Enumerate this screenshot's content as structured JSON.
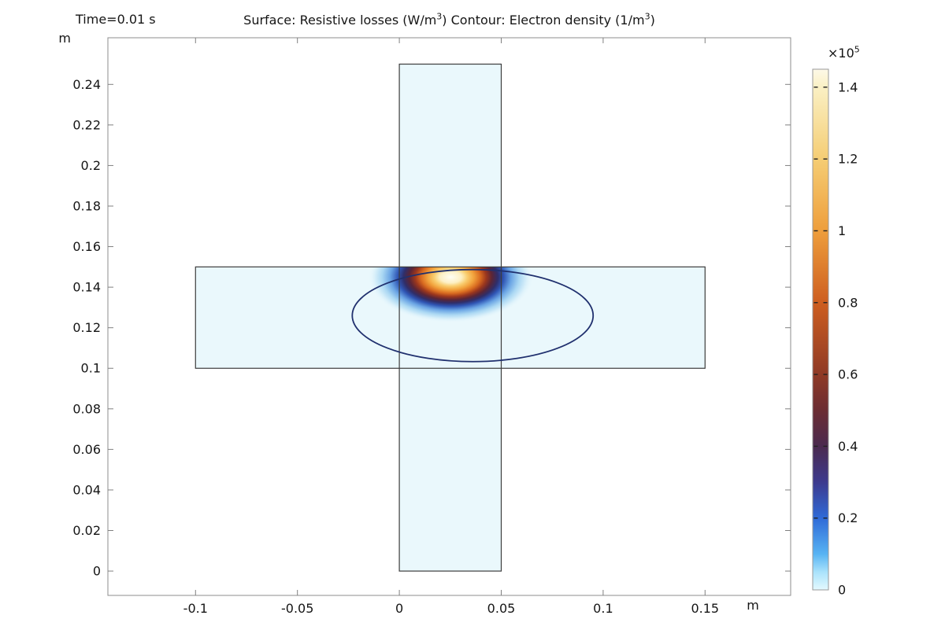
{
  "chart_data": {
    "type": "heatmap",
    "description": "2D simulation result plot: surface plot of resistive losses with an electron density contour over a cross-shaped geometry",
    "time_label": "Time=0.01 s",
    "title": "Surface: Resistive losses (W/m3)  Contour: Electron density (1/m3)",
    "title_parts": [
      {
        "text": "Surface: Resistive losses (W/m",
        "sup": false
      },
      {
        "text": "3",
        "sup": true
      },
      {
        "text": ")  Contour: Electron density (1/m",
        "sup": false
      },
      {
        "text": "3",
        "sup": true
      },
      {
        "text": ")",
        "sup": false
      }
    ],
    "x_unit": "m",
    "y_unit": "m",
    "x_axis": {
      "range": [
        -0.143,
        0.192
      ],
      "ticks": [
        -0.1,
        -0.05,
        0,
        0.05,
        0.1,
        0.15
      ],
      "tick_labels": [
        "-0.1",
        "-0.05",
        "0",
        "0.05",
        "0.1",
        "0.15"
      ]
    },
    "y_axis": {
      "range": [
        -0.012,
        0.263
      ],
      "ticks": [
        0,
        0.02,
        0.04,
        0.06,
        0.08,
        0.1,
        0.12,
        0.14,
        0.16,
        0.18,
        0.2,
        0.22,
        0.24
      ],
      "tick_labels": [
        "0",
        "0.02",
        "0.04",
        "0.06",
        "0.08",
        "0.1",
        "0.12",
        "0.14",
        "0.16",
        "0.18",
        "0.2",
        "0.22",
        "0.24"
      ]
    },
    "geometry": {
      "vertical_bar": {
        "x": [
          0,
          0.05
        ],
        "y": [
          0,
          0.25
        ]
      },
      "horizontal_bar": {
        "x": [
          -0.1,
          0.15
        ],
        "y": [
          0.1,
          0.15
        ]
      },
      "surface_background_value": 0
    },
    "surface_hotspot": {
      "center_x": 0.0252,
      "center_y": 0.145,
      "rx": 0.0406,
      "ry": 0.0225,
      "peak_value": 145000,
      "gradient_stops": [
        [
          0.0,
          "#fffef4",
          1
        ],
        [
          0.13,
          "#fdf0c4",
          1
        ],
        [
          0.2,
          "#f9ce70",
          1
        ],
        [
          0.28,
          "#f2a23c",
          1
        ],
        [
          0.36,
          "#d86a20",
          1
        ],
        [
          0.43,
          "#9c371d",
          1
        ],
        [
          0.5,
          "#5a2536",
          1
        ],
        [
          0.57,
          "#2f2e6a",
          1
        ],
        [
          0.64,
          "#2f55b4",
          1
        ],
        [
          0.73,
          "#6aa4e4",
          1
        ],
        [
          0.83,
          "#abd8f3",
          1
        ],
        [
          0.92,
          "#d9f0fa",
          1
        ],
        [
          1.0,
          "#eaf8fc",
          0
        ]
      ]
    },
    "contour_level": {
      "quantity": "Electron density",
      "cx": 0.036,
      "cy": 0.126,
      "rx": 0.0591,
      "ry": 0.0227
    },
    "colorbar": {
      "multiplier": "×105",
      "multiplier_parts": [
        {
          "text": "×10",
          "sup": false
        },
        {
          "text": "5",
          "sup": true
        }
      ],
      "range": [
        0,
        1.45
      ],
      "ticks": [
        0,
        0.2,
        0.4,
        0.6,
        0.8,
        1,
        1.2,
        1.4
      ],
      "tick_labels": [
        "0",
        "0.2",
        "0.4",
        "0.6",
        "0.8",
        "1",
        "1.2",
        "1.4"
      ],
      "stops": [
        [
          0.0,
          "#e4f9fe"
        ],
        [
          0.05,
          "#a9e2fb"
        ],
        [
          0.1,
          "#57b3f3"
        ],
        [
          0.2,
          "#2f6ad7"
        ],
        [
          0.3,
          "#3d3a8e"
        ],
        [
          0.4,
          "#4b2a4f"
        ],
        [
          0.5,
          "#6b2d33"
        ],
        [
          0.6,
          "#8f3a26"
        ],
        [
          0.8,
          "#cd5e20"
        ],
        [
          1.0,
          "#ee9e3c"
        ],
        [
          1.2,
          "#f5cd74"
        ],
        [
          1.4,
          "#faf0c4"
        ],
        [
          1.45,
          "#fdf9e8"
        ]
      ]
    },
    "colors": {
      "frame": "#8c8c8c",
      "tick": "#808080",
      "geometry_fill": "#eaf8fc",
      "geometry_stroke": "#3c3c3c",
      "contour_stroke": "#20306e",
      "colorbar_border": "#999999",
      "text": "#151515",
      "background": "#ffffff"
    }
  }
}
